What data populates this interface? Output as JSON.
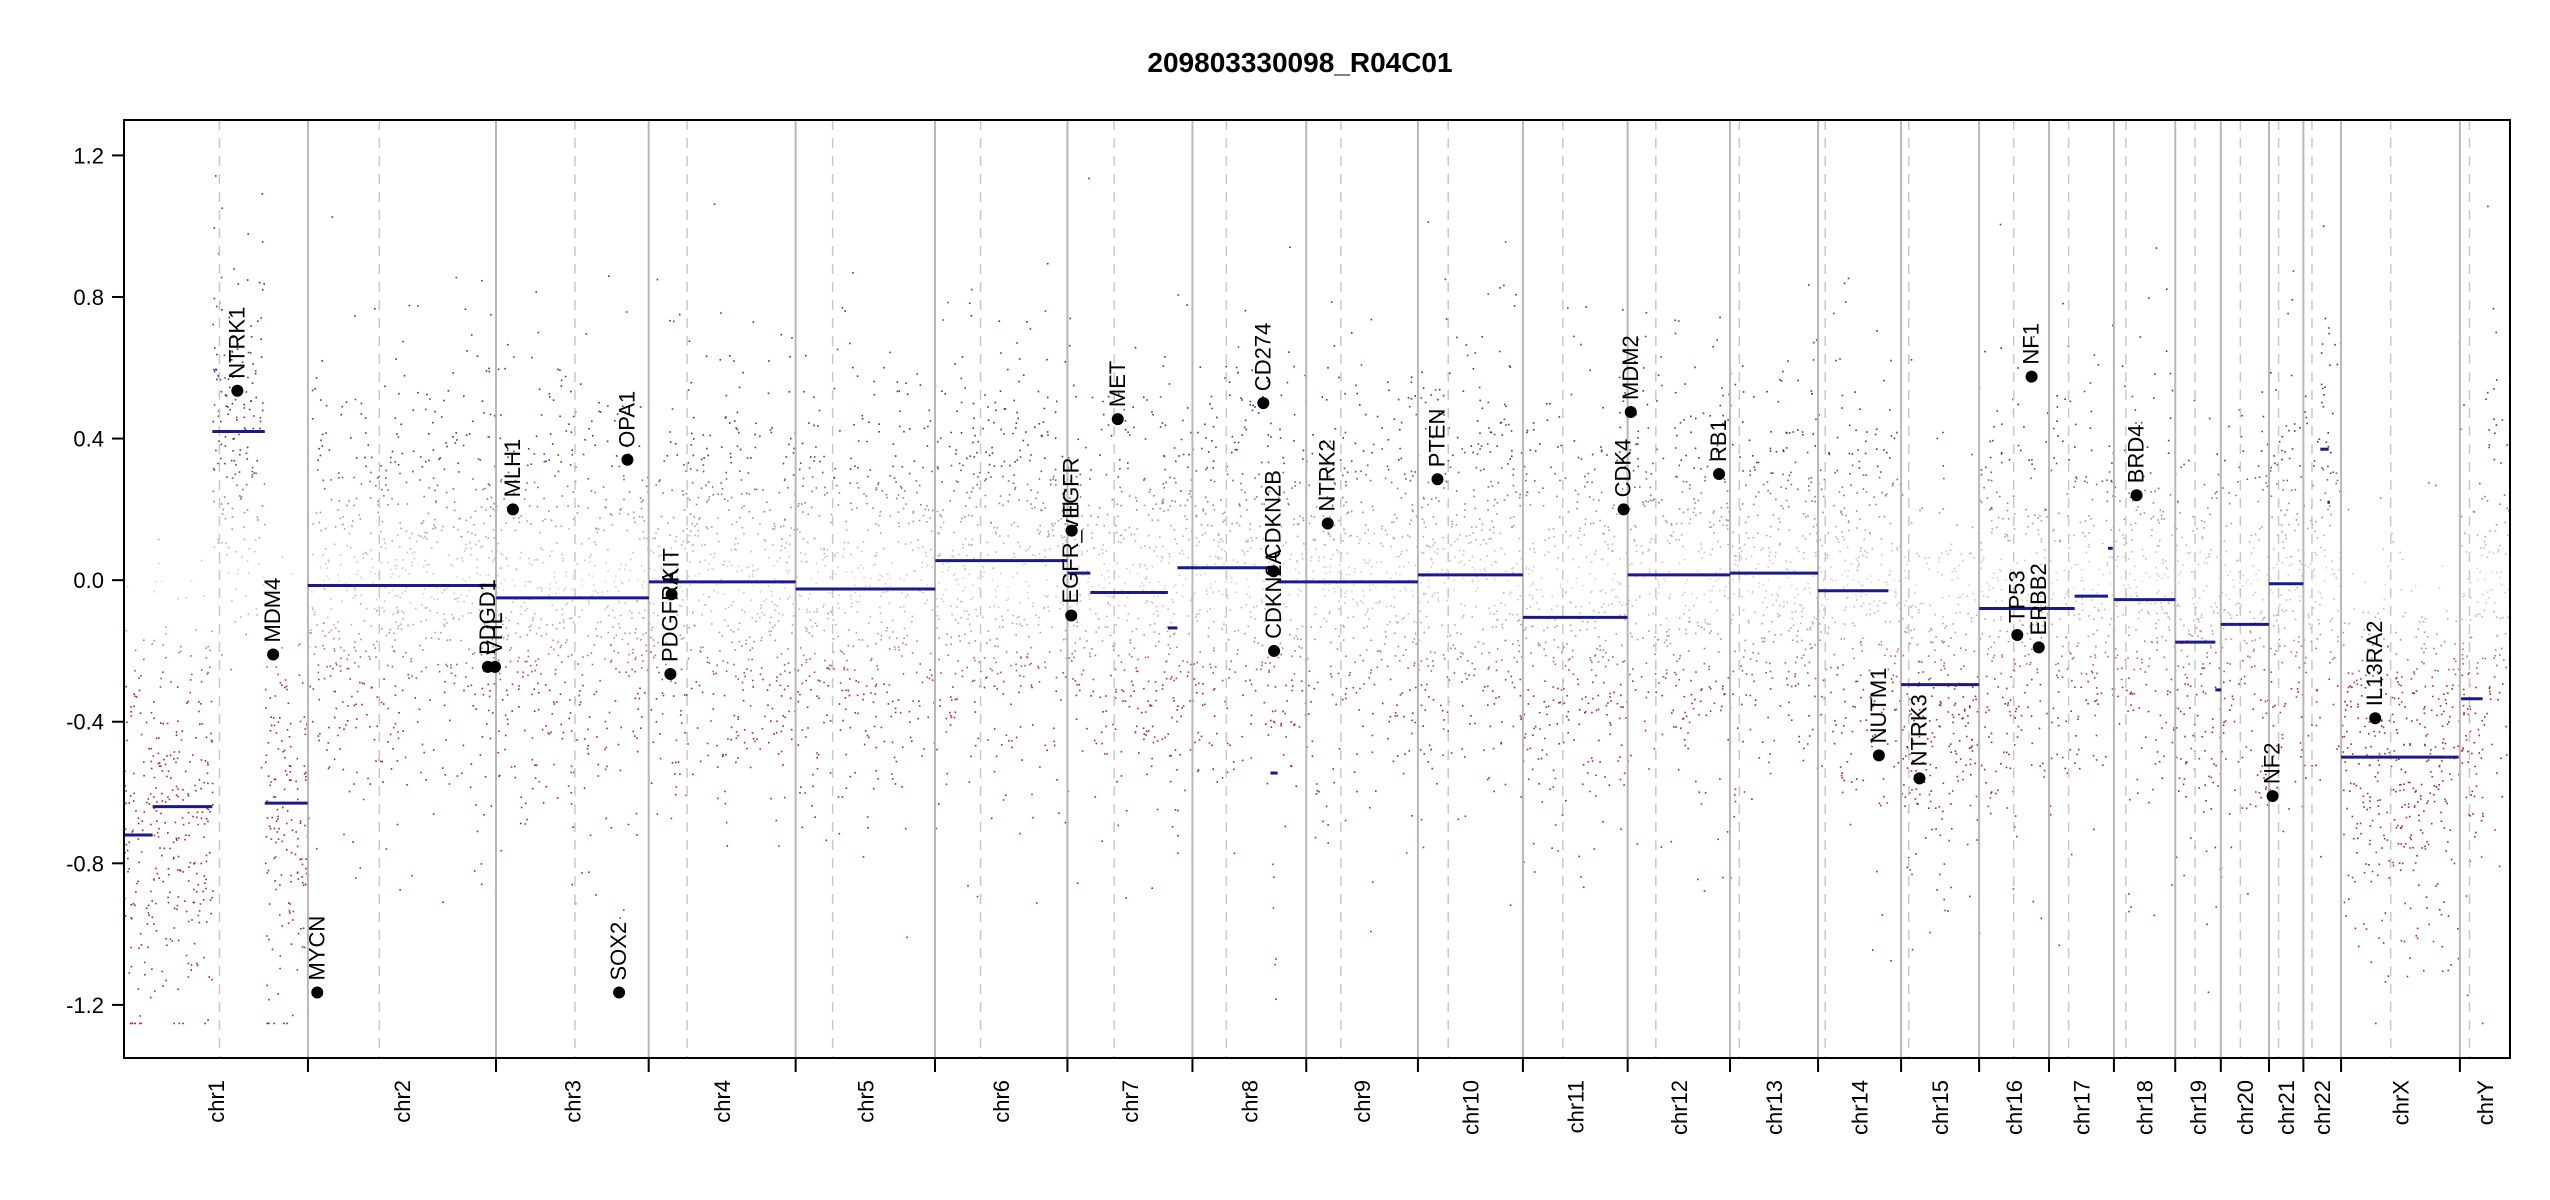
{
  "chart_data": {
    "type": "scatter",
    "title": "209803330098_R04C01",
    "xlabel": "",
    "ylabel": "",
    "ylim": [
      -1.35,
      1.3
    ],
    "yticks": [
      1.2,
      0.8,
      0.4,
      0.0,
      -0.4,
      -0.8,
      -1.2
    ],
    "ytick_labels": [
      "1.2",
      "0.8",
      "0.4",
      "0.0",
      "-0.4",
      "-0.8",
      "-1.2"
    ],
    "colors": {
      "gain": "#2a2aa8",
      "loss": "#b01818",
      "neutral": "#b0b0b0",
      "segment": "#1a1a8c",
      "gene_point": "#000000",
      "chrom_divider": "#b8b8b8",
      "centromere": "#c8c8c8"
    },
    "chromosomes": [
      {
        "name": "chr1",
        "start": 0.0,
        "end": 0.0771,
        "centromere": 0.04
      },
      {
        "name": "chr2",
        "start": 0.0771,
        "end": 0.1559,
        "centromere": 0.107
      },
      {
        "name": "chr3",
        "start": 0.1559,
        "end": 0.2199,
        "centromere": 0.189
      },
      {
        "name": "chr4",
        "start": 0.2199,
        "end": 0.2815,
        "centromere": 0.236
      },
      {
        "name": "chr5",
        "start": 0.2815,
        "end": 0.3399,
        "centromere": 0.297
      },
      {
        "name": "chr6",
        "start": 0.3399,
        "end": 0.3954,
        "centromere": 0.359
      },
      {
        "name": "chr7",
        "start": 0.3954,
        "end": 0.4478,
        "centromere": 0.415
      },
      {
        "name": "chr8",
        "start": 0.4478,
        "end": 0.4955,
        "centromere": 0.462
      },
      {
        "name": "chr9",
        "start": 0.4955,
        "end": 0.5423,
        "centromere": 0.51
      },
      {
        "name": "chr10",
        "start": 0.5423,
        "end": 0.5863,
        "centromere": 0.555
      },
      {
        "name": "chr11",
        "start": 0.5863,
        "end": 0.6302,
        "centromere": 0.603
      },
      {
        "name": "chr12",
        "start": 0.6302,
        "end": 0.6731,
        "centromere": 0.642
      },
      {
        "name": "chr13",
        "start": 0.6731,
        "end": 0.71,
        "centromere": 0.677
      },
      {
        "name": "chr14",
        "start": 0.71,
        "end": 0.7448,
        "centromere": 0.713
      },
      {
        "name": "chr15",
        "start": 0.7448,
        "end": 0.7775,
        "centromere": 0.748
      },
      {
        "name": "chr16",
        "start": 0.7775,
        "end": 0.8068,
        "centromere": 0.792
      },
      {
        "name": "chr17",
        "start": 0.8068,
        "end": 0.834,
        "centromere": 0.815
      },
      {
        "name": "chr18",
        "start": 0.834,
        "end": 0.8597,
        "centromere": 0.839
      },
      {
        "name": "chr19",
        "start": 0.8597,
        "end": 0.8788,
        "centromere": 0.868
      },
      {
        "name": "chr20",
        "start": 0.8788,
        "end": 0.899,
        "centromere": 0.887
      },
      {
        "name": "chr21",
        "start": 0.899,
        "end": 0.9134,
        "centromere": 0.903
      },
      {
        "name": "chr22",
        "start": 0.9134,
        "end": 0.9292,
        "centromere": 0.917
      },
      {
        "name": "chrX",
        "start": 0.9292,
        "end": 0.979,
        "centromere": 0.95
      },
      {
        "name": "chrY",
        "start": 0.979,
        "end": 1.0,
        "centromere": 0.983
      }
    ],
    "segments": [
      {
        "x0": 0.0,
        "x1": 0.012,
        "y": -0.72
      },
      {
        "x0": 0.012,
        "x1": 0.037,
        "y": -0.64
      },
      {
        "x0": 0.037,
        "x1": 0.059,
        "y": 0.42
      },
      {
        "x0": 0.059,
        "x1": 0.077,
        "y": -0.63
      },
      {
        "x0": 0.077,
        "x1": 0.156,
        "y": -0.015
      },
      {
        "x0": 0.156,
        "x1": 0.22,
        "y": -0.05
      },
      {
        "x0": 0.22,
        "x1": 0.2815,
        "y": -0.005
      },
      {
        "x0": 0.2815,
        "x1": 0.34,
        "y": -0.025
      },
      {
        "x0": 0.34,
        "x1": 0.3954,
        "y": 0.055
      },
      {
        "x0": 0.3954,
        "x1": 0.405,
        "y": 0.02
      },
      {
        "x0": 0.405,
        "x1": 0.4375,
        "y": -0.035
      },
      {
        "x0": 0.4375,
        "x1": 0.4415,
        "y": -0.135
      },
      {
        "x0": 0.4415,
        "x1": 0.4805,
        "y": 0.035
      },
      {
        "x0": 0.4805,
        "x1": 0.4835,
        "y": -0.545
      },
      {
        "x0": 0.4835,
        "x1": 0.5423,
        "y": -0.005
      },
      {
        "x0": 0.5423,
        "x1": 0.5863,
        "y": 0.015
      },
      {
        "x0": 0.5863,
        "x1": 0.6302,
        "y": -0.105
      },
      {
        "x0": 0.6302,
        "x1": 0.6731,
        "y": 0.015
      },
      {
        "x0": 0.6731,
        "x1": 0.71,
        "y": 0.02
      },
      {
        "x0": 0.71,
        "x1": 0.7395,
        "y": -0.03
      },
      {
        "x0": 0.7448,
        "x1": 0.7775,
        "y": -0.295
      },
      {
        "x0": 0.7775,
        "x1": 0.8175,
        "y": -0.08
      },
      {
        "x0": 0.8175,
        "x1": 0.8315,
        "y": -0.045
      },
      {
        "x0": 0.8315,
        "x1": 0.8335,
        "y": 0.09
      },
      {
        "x0": 0.834,
        "x1": 0.8597,
        "y": -0.055
      },
      {
        "x0": 0.8597,
        "x1": 0.8765,
        "y": -0.175
      },
      {
        "x0": 0.8765,
        "x1": 0.879,
        "y": -0.31
      },
      {
        "x0": 0.8788,
        "x1": 0.899,
        "y": -0.125
      },
      {
        "x0": 0.899,
        "x1": 0.9134,
        "y": -0.01
      },
      {
        "x0": 0.9205,
        "x1": 0.924,
        "y": 0.37
      },
      {
        "x0": 0.9235,
        "x1": 0.9245,
        "y": 0.22
      },
      {
        "x0": 0.9292,
        "x1": 0.9735,
        "y": -0.5
      },
      {
        "x0": 0.9735,
        "x1": 0.9785,
        "y": -0.5
      },
      {
        "x0": 0.9795,
        "x1": 0.9885,
        "y": -0.335
      }
    ],
    "genes": [
      {
        "name": "NTRK1",
        "x": 0.0475,
        "y": 0.535
      },
      {
        "name": "MDM4",
        "x": 0.0625,
        "y": -0.21
      },
      {
        "name": "MYCN",
        "x": 0.081,
        "y": -1.165
      },
      {
        "name": "PDGD1",
        "x": 0.1525,
        "y": -0.245
      },
      {
        "name": "VHL",
        "x": 0.1555,
        "y": -0.245
      },
      {
        "name": "MLH1",
        "x": 0.163,
        "y": 0.2
      },
      {
        "name": "SOX2",
        "x": 0.2075,
        "y": -1.165
      },
      {
        "name": "OPA1",
        "x": 0.211,
        "y": 0.34
      },
      {
        "name": "KIT",
        "x": 0.2295,
        "y": -0.04
      },
      {
        "name": "PDGFRA",
        "x": 0.229,
        "y": -0.265
      },
      {
        "name": "EGFR",
        "x": 0.3972,
        "y": 0.14
      },
      {
        "name": "EGFR_vIII",
        "x": 0.397,
        "y": -0.1
      },
      {
        "name": "MET",
        "x": 0.4165,
        "y": 0.455
      },
      {
        "name": "CD274",
        "x": 0.4775,
        "y": 0.5
      },
      {
        "name": "CDKN2B",
        "x": 0.4818,
        "y": 0.025
      },
      {
        "name": "CDKN2A",
        "x": 0.482,
        "y": -0.2
      },
      {
        "name": "NTRK2",
        "x": 0.5045,
        "y": 0.16
      },
      {
        "name": "PTEN",
        "x": 0.5505,
        "y": 0.285
      },
      {
        "name": "CDK4",
        "x": 0.6285,
        "y": 0.2
      },
      {
        "name": "MDM2",
        "x": 0.6315,
        "y": 0.475
      },
      {
        "name": "RB1",
        "x": 0.6685,
        "y": 0.3
      },
      {
        "name": "NUTM1",
        "x": 0.7355,
        "y": -0.495
      },
      {
        "name": "NTRK3",
        "x": 0.7525,
        "y": -0.56
      },
      {
        "name": "TP53",
        "x": 0.7935,
        "y": -0.155
      },
      {
        "name": "ERBB2",
        "x": 0.8025,
        "y": -0.19
      },
      {
        "name": "NF1",
        "x": 0.7995,
        "y": 0.575
      },
      {
        "name": "BRD4",
        "x": 0.8435,
        "y": 0.24
      },
      {
        "name": "NF2",
        "x": 0.9005,
        "y": -0.61
      },
      {
        "name": "IL13RA2",
        "x": 0.9435,
        "y": -0.39
      }
    ]
  }
}
